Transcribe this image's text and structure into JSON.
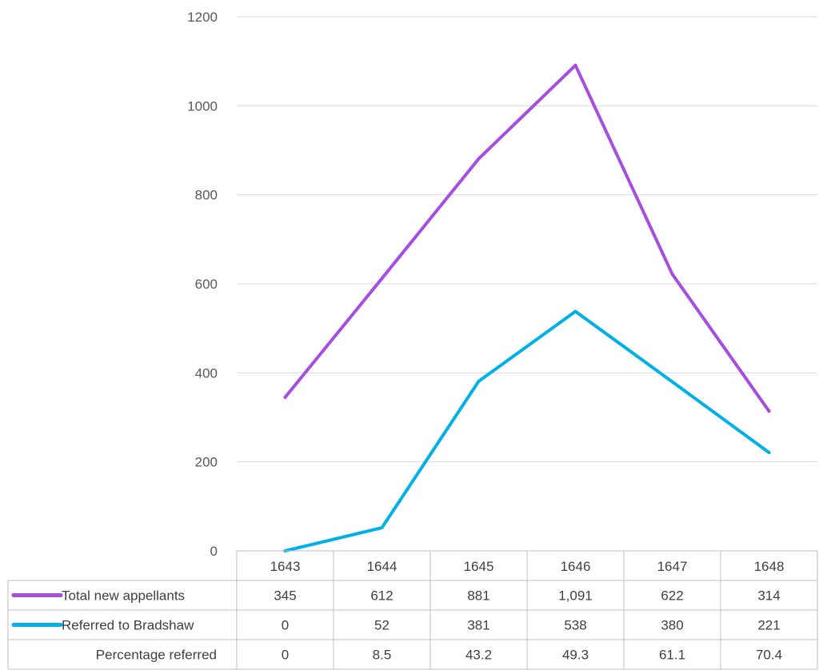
{
  "chart_data": {
    "type": "line",
    "title": "",
    "xlabel": "",
    "ylabel": "",
    "ylim": [
      0,
      1200
    ],
    "yticks": [
      0,
      200,
      400,
      600,
      800,
      1000,
      1200
    ],
    "categories": [
      "1643",
      "1644",
      "1645",
      "1646",
      "1647",
      "1648"
    ],
    "grid": true,
    "legend": "data table below chart",
    "series": [
      {
        "name": "Total new appellants",
        "color": "#a64ee0",
        "values": [
          345,
          612,
          881,
          1091,
          622,
          314
        ],
        "labels": [
          "345",
          "612",
          "881",
          "1,091",
          "622",
          "314"
        ],
        "plotted": true
      },
      {
        "name": "Referred to Bradshaw",
        "color": "#00b0e6",
        "values": [
          0,
          52,
          381,
          538,
          380,
          221
        ],
        "labels": [
          "0",
          "52",
          "381",
          "538",
          "380",
          "221"
        ],
        "plotted": true
      },
      {
        "name": "Percentage referred",
        "color": "",
        "values": [
          0,
          8.5,
          43.2,
          49.3,
          61.1,
          70.4
        ],
        "labels": [
          "0",
          "8.5",
          "43.2",
          "49.3",
          "61.1",
          "70.4"
        ],
        "plotted": false
      }
    ]
  }
}
